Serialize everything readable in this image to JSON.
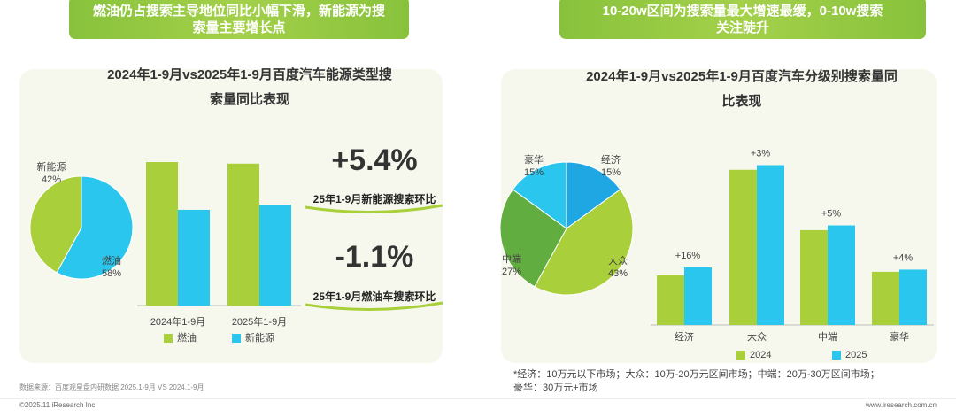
{
  "panels": [
    {
      "banner_lines": [
        "燃油仍占搜索主导地位同比小幅下滑，新能源为搜",
        "索量主要增长点"
      ],
      "title_lines": [
        "2024年1-9月vs2025年1-9月百度汽车能源类型搜",
        "索量同比表现"
      ],
      "highlights": [
        {
          "value": "+5.4%",
          "caption": "25年1-9月新能源搜索环比"
        },
        {
          "value": "-1.1%",
          "caption": "25年1-9月燃油车搜索环比"
        }
      ]
    },
    {
      "banner_lines": [
        "10-20w区间为搜索量最大增速最缓，0-10w搜索",
        "关注陡升"
      ],
      "title_lines": [
        "2024年1-9月vs2025年1-9月百度汽车分级别搜索量同",
        "比表现"
      ],
      "footnote_lines": [
        "*经济：10万元以下市场；大众：10万-20万元区间市场；中端：20万-30万区间市场；",
        "豪华：30万元+市场"
      ]
    }
  ],
  "source": "数据来源：百度观星盘内研数据 2025.1-9月 VS 2024.1-9月",
  "footer": {
    "copyright": "©2025.11 iResearch Inc.",
    "website": "www.iresearch.com.cn"
  },
  "chart_data": [
    {
      "type": "pie",
      "categories": [
        "燃油",
        "新能源"
      ],
      "values": [
        58,
        42
      ],
      "value_labels": [
        "58%",
        "42%"
      ],
      "colors": [
        "#2bc6ee",
        "#a9cf3a"
      ]
    },
    {
      "type": "bar",
      "categories": [
        "2024年1-9月",
        "2025年1-9月"
      ],
      "ylim": [
        0,
        100
      ],
      "series": [
        {
          "name": "燃油",
          "color": "#a9cf3a",
          "values": [
            100,
            98.9
          ]
        },
        {
          "name": "新能源",
          "color": "#2bc6ee",
          "values": [
            66.7,
            70.3
          ]
        }
      ]
    },
    {
      "type": "pie",
      "categories": [
        "经济",
        "大众",
        "中端",
        "豪华"
      ],
      "values": [
        15,
        43,
        27,
        15
      ],
      "value_labels": [
        "15%",
        "43%",
        "27%",
        "15%"
      ],
      "colors": [
        "#1fa7e3",
        "#a9cf3a",
        "#62ad3f",
        "#2bc6ee"
      ]
    },
    {
      "type": "bar",
      "categories": [
        "经济",
        "大众",
        "中端",
        "豪华"
      ],
      "ylim": [
        0,
        105
      ],
      "growth_labels": [
        "+16%",
        "+3%",
        "+5%",
        "+4%"
      ],
      "series": [
        {
          "name": "2024",
          "color": "#a9cf3a",
          "values": [
            32,
            100,
            61.1,
            34.3
          ]
        },
        {
          "name": "2025",
          "color": "#2bc6ee",
          "values": [
            37.1,
            103,
            64.2,
            35.7
          ]
        }
      ]
    }
  ]
}
